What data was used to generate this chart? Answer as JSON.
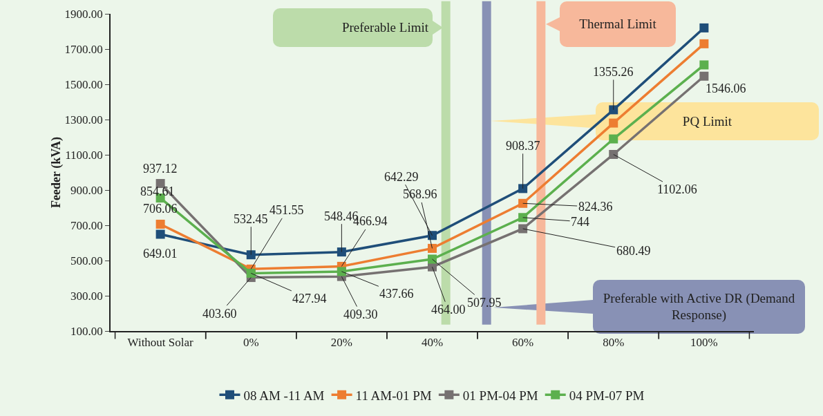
{
  "chart_data": {
    "type": "line",
    "ylabel": "Feeder (kVA)",
    "x": [
      -20,
      0,
      20,
      40,
      60,
      80,
      100
    ],
    "xlim": [
      -31,
      111
    ],
    "xticks": [
      {
        "value": -20,
        "label": "Without Solar"
      },
      {
        "value": 0,
        "label": "0%"
      },
      {
        "value": 20,
        "label": "20%"
      },
      {
        "value": 40,
        "label": "40%"
      },
      {
        "value": 60,
        "label": "60%"
      },
      {
        "value": 80,
        "label": "80%"
      },
      {
        "value": 100,
        "label": "100%"
      }
    ],
    "series": [
      {
        "name": "08 AM -11 AM",
        "color": "#1f4e79",
        "values": [
          649.01,
          532.45,
          548.46,
          642.29,
          908.37,
          1355.26,
          1820
        ],
        "value_labels": [
          "649.01",
          "532.45",
          "548.46",
          "642.29",
          "908.37",
          "1355.26",
          null
        ]
      },
      {
        "name": "11 AM-01 PM",
        "color": "#ed7d31",
        "values": [
          706.06,
          451.55,
          466.94,
          568.96,
          824.36,
          1280,
          1730
        ],
        "value_labels": [
          "706.06",
          "451.55",
          "466.94",
          "568.96",
          "824.36",
          null,
          null
        ]
      },
      {
        "name": "01 PM-04 PM",
        "color": "#767171",
        "values": [
          937.12,
          403.6,
          409.3,
          464.0,
          680.49,
          1102.06,
          1546.06
        ],
        "value_labels": [
          "937.12",
          "403.60",
          "409.30",
          "464.00",
          "680.49",
          "1102.06",
          "1546.06"
        ]
      },
      {
        "name": "04 PM-07 PM",
        "color": "#5cb04e",
        "values": [
          854.61,
          427.94,
          437.66,
          507.95,
          744,
          1190,
          1610
        ],
        "value_labels": [
          "854.61",
          "427.94",
          "437.66",
          "507.95",
          "744",
          null,
          null
        ]
      }
    ],
    "ylim": [
      100,
      1900
    ],
    "yticks": [
      {
        "value": 100,
        "label": "100.00"
      },
      {
        "value": 300,
        "label": "300.00"
      },
      {
        "value": 500,
        "label": "500.00"
      },
      {
        "value": 700,
        "label": "700.00"
      },
      {
        "value": 900,
        "label": "900.00"
      },
      {
        "value": 1100,
        "label": "1100.00"
      },
      {
        "value": 1300,
        "label": "1300.00"
      },
      {
        "value": 1500,
        "label": "1500.00"
      },
      {
        "value": 1700,
        "label": "1700.00"
      },
      {
        "value": 1900,
        "label": "1900.00"
      }
    ],
    "ref_lines": [
      {
        "axis": "x",
        "value": 43,
        "label": "Preferable Limit",
        "color": "#bcdcaa"
      },
      {
        "axis": "x",
        "value": 52,
        "label": "Preferable with Active DR (Demand Response)",
        "color": "#8891b5"
      },
      {
        "axis": "x",
        "value": 64,
        "label": "Thermal Limit",
        "color": "#f7b89b"
      }
    ],
    "annotations": [
      "PQ Limit"
    ],
    "grid": false,
    "legend": "bottom",
    "marker": "square",
    "line_style": "solid"
  }
}
